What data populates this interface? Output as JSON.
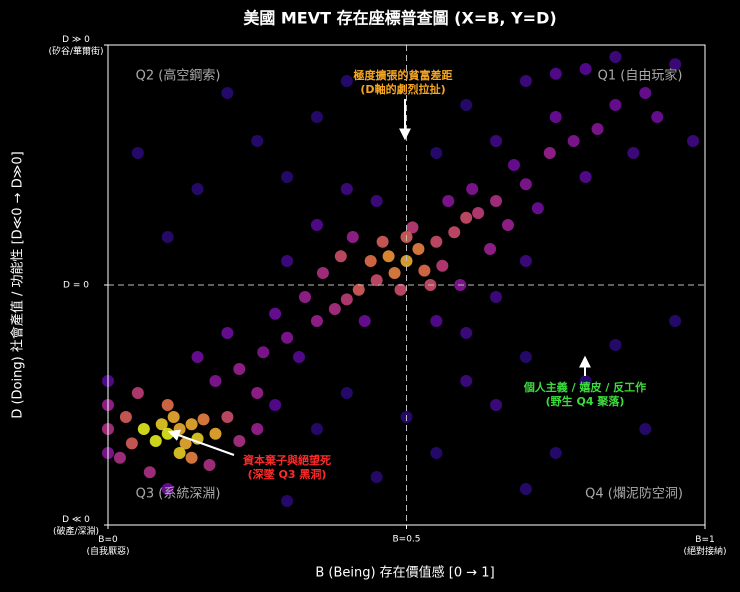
{
  "chart_data": {
    "type": "scatter",
    "title": "美國 MEVT 存在座標普查圖 (X=B, Y=D)",
    "x_label": "B (Being) 存在價值感 [0 → 1]",
    "y_label": "D (Doing) 社會產值 / 功能性 [D≪0 → D≫0]",
    "xlim": [
      0,
      1
    ],
    "ylim": [
      -1,
      1
    ],
    "xticks": [
      {
        "value": 0,
        "label": "B=0\n(自我厭惡)"
      },
      {
        "value": 0.5,
        "label": "B=0.5"
      },
      {
        "value": 1,
        "label": "B=1\n(絕對接納)"
      }
    ],
    "yticks": [
      {
        "value": -1,
        "label": "D ≪ 0\n(破產/深淵)"
      },
      {
        "value": 0,
        "label": "D = 0"
      },
      {
        "value": 1,
        "label": "D ≫ 0\n(矽谷/華爾街)"
      }
    ],
    "reference_lines": {
      "x": 0.5,
      "y": 0
    },
    "colormap": [
      "#2a0a7a",
      "#6a0aa8",
      "#a5229a",
      "#d2497a",
      "#f0764f",
      "#fca636",
      "#f0f921"
    ],
    "quadrant_labels": [
      "Q1 (自由玩家)",
      "Q2 (高空鋼索)",
      "Q3 (系統深淵)",
      "Q4 (爛泥防空洞)"
    ],
    "annotations": [
      {
        "lines": [
          "極度擴張的貧富差距",
          "(D軸的劇烈拉扯)"
        ],
        "color": "#f5a623"
      },
      {
        "lines": [
          "個人主義 / 嬉皮 / 反工作",
          "(野生 Q4 聚落)"
        ],
        "color": "#3ddc3d"
      },
      {
        "lines": [
          "資本棄子與絕望死",
          "(深墜 Q3 黑洞)"
        ],
        "color": "#ff2a2a"
      }
    ],
    "x": [
      0.5,
      0.48,
      0.52,
      0.45,
      0.55,
      0.47,
      0.53,
      0.42,
      0.58,
      0.5,
      0.44,
      0.56,
      0.4,
      0.6,
      0.49,
      0.51,
      0.38,
      0.62,
      0.46,
      0.54,
      0.35,
      0.65,
      0.33,
      0.67,
      0.3,
      0.7,
      0.36,
      0.64,
      0.28,
      0.72,
      0.32,
      0.68,
      0.41,
      0.59,
      0.39,
      0.61,
      0.43,
      0.57,
      0.26,
      0.74,
      0.22,
      0.78,
      0.2,
      0.8,
      0.25,
      0.75,
      0.18,
      0.82,
      0.3,
      0.7,
      0.35,
      0.65,
      0.45,
      0.55,
      0.4,
      0.6,
      0.85,
      0.15,
      0.88,
      0.9,
      0.7,
      0.8,
      0.92,
      0.95,
      0.6,
      0.65,
      0.85,
      0.75,
      0.98,
      0.55,
      0.15,
      0.25,
      0.35,
      0.1,
      0.3,
      0.2,
      0.4,
      0.05,
      0.7,
      0.8,
      0.85,
      0.65,
      0.9,
      0.75,
      0.95,
      0.6,
      0.7,
      0.55,
      0.12,
      0.1,
      0.14,
      0.11,
      0.13,
      0.09,
      0.15,
      0.08,
      0.16,
      0.12,
      0.06,
      0.18,
      0.1,
      0.14,
      0.04,
      0.2,
      0.03,
      0.17,
      0.22,
      0.07,
      0.25,
      0.02,
      0.05,
      0.28,
      0.1,
      0.0,
      0.0,
      0.0,
      0.0,
      0.35,
      0.45,
      0.3,
      0.4,
      0.5
    ],
    "y": [
      0.1,
      0.05,
      0.15,
      0.02,
      0.18,
      0.12,
      0.06,
      -0.02,
      0.22,
      0.2,
      0.1,
      0.08,
      -0.06,
      0.28,
      -0.02,
      0.24,
      -0.1,
      0.3,
      0.18,
      0.0,
      -0.15,
      0.35,
      -0.05,
      0.25,
      -0.22,
      0.42,
      0.05,
      0.15,
      -0.12,
      0.32,
      -0.3,
      0.5,
      0.2,
      0.0,
      0.12,
      0.4,
      -0.15,
      0.35,
      -0.28,
      0.55,
      -0.35,
      0.6,
      -0.2,
      0.45,
      -0.45,
      0.7,
      -0.4,
      0.65,
      0.1,
      0.1,
      0.25,
      -0.05,
      0.35,
      -0.15,
      0.4,
      -0.2,
      0.75,
      -0.3,
      0.55,
      0.8,
      0.85,
      0.9,
      0.7,
      0.92,
      0.75,
      0.6,
      0.95,
      0.88,
      0.6,
      0.55,
      0.4,
      0.6,
      0.7,
      0.2,
      0.45,
      0.8,
      0.85,
      0.55,
      -0.3,
      -0.4,
      -0.25,
      -0.5,
      -0.6,
      -0.7,
      -0.15,
      -0.4,
      -0.85,
      -0.7,
      -0.6,
      -0.62,
      -0.58,
      -0.55,
      -0.66,
      -0.58,
      -0.64,
      -0.65,
      -0.56,
      -0.7,
      -0.6,
      -0.62,
      -0.5,
      -0.72,
      -0.66,
      -0.55,
      -0.55,
      -0.75,
      -0.65,
      -0.78,
      -0.6,
      -0.72,
      -0.45,
      -0.5,
      -0.85,
      -0.5,
      -0.6,
      -0.7,
      -0.4,
      -0.6,
      -0.8,
      -0.9,
      -0.45,
      -0.55
    ]
  }
}
